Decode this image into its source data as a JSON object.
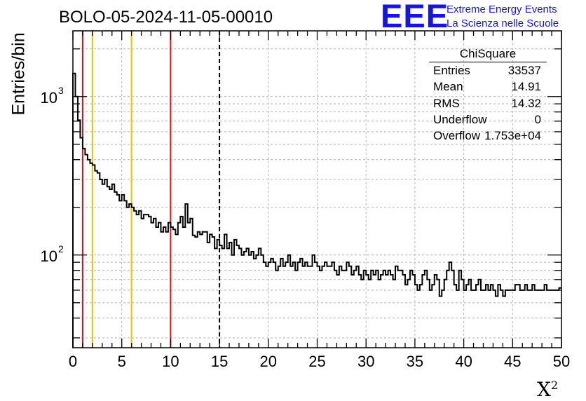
{
  "header": {
    "run_title": "BOLO-05-2024-11-05-00010",
    "logo_text": "EEE",
    "logo_line1": "Extreme Energy Events",
    "logo_line2": "La Scienza nelle Scuole",
    "logo_color": "#1414e6"
  },
  "stats_box": {
    "title": "ChiSquare",
    "rows": [
      {
        "label": "Entries",
        "value": "33537"
      },
      {
        "label": "Mean",
        "value": "14.91"
      },
      {
        "label": "RMS",
        "value": "14.32"
      },
      {
        "label": "Underflow",
        "value": "0"
      },
      {
        "label": "Overflow",
        "value": "1.753e+04"
      }
    ]
  },
  "chart_data": {
    "type": "histogram",
    "title": "BOLO-05-2024-11-05-00010",
    "xlabel": "X",
    "xlabel_superscript": "2",
    "ylabel": "Entries/bin",
    "xlim": [
      0,
      50
    ],
    "ylim": [
      26,
      2600
    ],
    "yscale": "log",
    "bin_width": 1,
    "x_tick_labels": [
      "0",
      "5",
      "10",
      "15",
      "20",
      "25",
      "30",
      "35",
      "40",
      "45",
      "50"
    ],
    "y_tick_labels": [
      {
        "base": "10",
        "exp": "2",
        "value": 100
      },
      {
        "base": "10",
        "exp": "3",
        "value": 1000
      }
    ],
    "grid": true,
    "counts": [
      1400,
      1000,
      710,
      550,
      470,
      430,
      400,
      380,
      370,
      340,
      330,
      300,
      280,
      300,
      270,
      260,
      280,
      250,
      240,
      220,
      240,
      220,
      200,
      210,
      200,
      190,
      180,
      190,
      170,
      180,
      180,
      175,
      160,
      170,
      150,
      160,
      140,
      150,
      140,
      160,
      150,
      145,
      135,
      160,
      175,
      150,
      210,
      160,
      170,
      133,
      130,
      140,
      135,
      140,
      140,
      120,
      135,
      130,
      110,
      125,
      115,
      110,
      135,
      110,
      120,
      100,
      125,
      115,
      110,
      100,
      105,
      110,
      100,
      105,
      95,
      100,
      110,
      100,
      90,
      85,
      90,
      95,
      90,
      80,
      85,
      95,
      85,
      90,
      100,
      85,
      90,
      80,
      90,
      95,
      85,
      90,
      85,
      85,
      100,
      90,
      85,
      80,
      85,
      90,
      85,
      85,
      90,
      80,
      75,
      85,
      80,
      80,
      90,
      85,
      75,
      80,
      85,
      75,
      70,
      80,
      75,
      70,
      80,
      75,
      80,
      70,
      75,
      80,
      75,
      80,
      75,
      70,
      85,
      80,
      80,
      75,
      65,
      70,
      80,
      75,
      65,
      60,
      65,
      75,
      80,
      70,
      60,
      65,
      75,
      70,
      55,
      60,
      70,
      80,
      90,
      80,
      65,
      60,
      80,
      70,
      60,
      65,
      70,
      60,
      60,
      65,
      70,
      60,
      60,
      65,
      60,
      65,
      60,
      55,
      65,
      60,
      55,
      60,
      60,
      60,
      60,
      65,
      65,
      60,
      60,
      65,
      60,
      60,
      65,
      60,
      60,
      60,
      60,
      65,
      60,
      60,
      60,
      60,
      60,
      62
    ],
    "vertical_lines": [
      {
        "x": 1,
        "color": "#e01010",
        "style": "solid"
      },
      {
        "x": 2,
        "color": "#f0c000",
        "style": "solid"
      },
      {
        "x": 6,
        "color": "#f0c000",
        "style": "solid"
      },
      {
        "x": 10,
        "color": "#e01010",
        "style": "solid"
      },
      {
        "x": 15,
        "color": "#000000",
        "style": "dashed"
      }
    ]
  }
}
